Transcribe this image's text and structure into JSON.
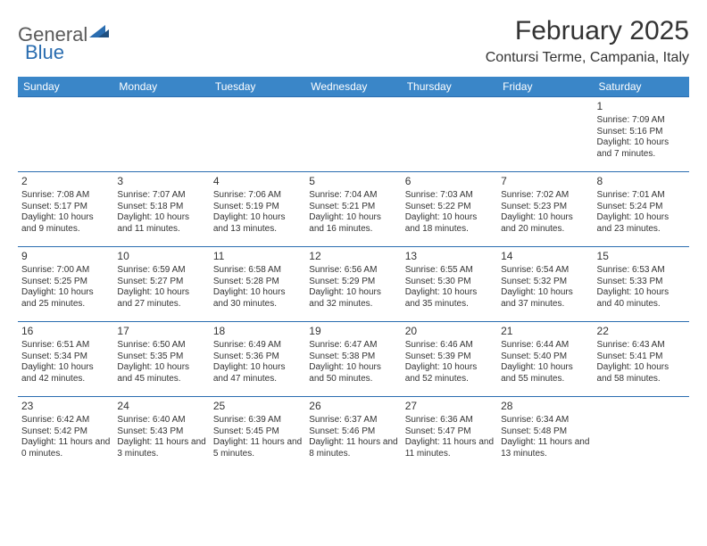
{
  "brand": {
    "part1": "General",
    "part2": "Blue"
  },
  "title": "February 2025",
  "location": "Contursi Terme, Campania, Italy",
  "colors": {
    "header_bg": "#3a86c8",
    "header_text": "#ffffff",
    "row_border": "#2a6db0",
    "text": "#333333",
    "background": "#ffffff"
  },
  "day_headers": [
    "Sunday",
    "Monday",
    "Tuesday",
    "Wednesday",
    "Thursday",
    "Friday",
    "Saturday"
  ],
  "weeks": [
    [
      null,
      null,
      null,
      null,
      null,
      null,
      {
        "n": "1",
        "sr": "Sunrise: 7:09 AM",
        "ss": "Sunset: 5:16 PM",
        "dl": "Daylight: 10 hours and 7 minutes."
      }
    ],
    [
      {
        "n": "2",
        "sr": "Sunrise: 7:08 AM",
        "ss": "Sunset: 5:17 PM",
        "dl": "Daylight: 10 hours and 9 minutes."
      },
      {
        "n": "3",
        "sr": "Sunrise: 7:07 AM",
        "ss": "Sunset: 5:18 PM",
        "dl": "Daylight: 10 hours and 11 minutes."
      },
      {
        "n": "4",
        "sr": "Sunrise: 7:06 AM",
        "ss": "Sunset: 5:19 PM",
        "dl": "Daylight: 10 hours and 13 minutes."
      },
      {
        "n": "5",
        "sr": "Sunrise: 7:04 AM",
        "ss": "Sunset: 5:21 PM",
        "dl": "Daylight: 10 hours and 16 minutes."
      },
      {
        "n": "6",
        "sr": "Sunrise: 7:03 AM",
        "ss": "Sunset: 5:22 PM",
        "dl": "Daylight: 10 hours and 18 minutes."
      },
      {
        "n": "7",
        "sr": "Sunrise: 7:02 AM",
        "ss": "Sunset: 5:23 PM",
        "dl": "Daylight: 10 hours and 20 minutes."
      },
      {
        "n": "8",
        "sr": "Sunrise: 7:01 AM",
        "ss": "Sunset: 5:24 PM",
        "dl": "Daylight: 10 hours and 23 minutes."
      }
    ],
    [
      {
        "n": "9",
        "sr": "Sunrise: 7:00 AM",
        "ss": "Sunset: 5:25 PM",
        "dl": "Daylight: 10 hours and 25 minutes."
      },
      {
        "n": "10",
        "sr": "Sunrise: 6:59 AM",
        "ss": "Sunset: 5:27 PM",
        "dl": "Daylight: 10 hours and 27 minutes."
      },
      {
        "n": "11",
        "sr": "Sunrise: 6:58 AM",
        "ss": "Sunset: 5:28 PM",
        "dl": "Daylight: 10 hours and 30 minutes."
      },
      {
        "n": "12",
        "sr": "Sunrise: 6:56 AM",
        "ss": "Sunset: 5:29 PM",
        "dl": "Daylight: 10 hours and 32 minutes."
      },
      {
        "n": "13",
        "sr": "Sunrise: 6:55 AM",
        "ss": "Sunset: 5:30 PM",
        "dl": "Daylight: 10 hours and 35 minutes."
      },
      {
        "n": "14",
        "sr": "Sunrise: 6:54 AM",
        "ss": "Sunset: 5:32 PM",
        "dl": "Daylight: 10 hours and 37 minutes."
      },
      {
        "n": "15",
        "sr": "Sunrise: 6:53 AM",
        "ss": "Sunset: 5:33 PM",
        "dl": "Daylight: 10 hours and 40 minutes."
      }
    ],
    [
      {
        "n": "16",
        "sr": "Sunrise: 6:51 AM",
        "ss": "Sunset: 5:34 PM",
        "dl": "Daylight: 10 hours and 42 minutes."
      },
      {
        "n": "17",
        "sr": "Sunrise: 6:50 AM",
        "ss": "Sunset: 5:35 PM",
        "dl": "Daylight: 10 hours and 45 minutes."
      },
      {
        "n": "18",
        "sr": "Sunrise: 6:49 AM",
        "ss": "Sunset: 5:36 PM",
        "dl": "Daylight: 10 hours and 47 minutes."
      },
      {
        "n": "19",
        "sr": "Sunrise: 6:47 AM",
        "ss": "Sunset: 5:38 PM",
        "dl": "Daylight: 10 hours and 50 minutes."
      },
      {
        "n": "20",
        "sr": "Sunrise: 6:46 AM",
        "ss": "Sunset: 5:39 PM",
        "dl": "Daylight: 10 hours and 52 minutes."
      },
      {
        "n": "21",
        "sr": "Sunrise: 6:44 AM",
        "ss": "Sunset: 5:40 PM",
        "dl": "Daylight: 10 hours and 55 minutes."
      },
      {
        "n": "22",
        "sr": "Sunrise: 6:43 AM",
        "ss": "Sunset: 5:41 PM",
        "dl": "Daylight: 10 hours and 58 minutes."
      }
    ],
    [
      {
        "n": "23",
        "sr": "Sunrise: 6:42 AM",
        "ss": "Sunset: 5:42 PM",
        "dl": "Daylight: 11 hours and 0 minutes."
      },
      {
        "n": "24",
        "sr": "Sunrise: 6:40 AM",
        "ss": "Sunset: 5:43 PM",
        "dl": "Daylight: 11 hours and 3 minutes."
      },
      {
        "n": "25",
        "sr": "Sunrise: 6:39 AM",
        "ss": "Sunset: 5:45 PM",
        "dl": "Daylight: 11 hours and 5 minutes."
      },
      {
        "n": "26",
        "sr": "Sunrise: 6:37 AM",
        "ss": "Sunset: 5:46 PM",
        "dl": "Daylight: 11 hours and 8 minutes."
      },
      {
        "n": "27",
        "sr": "Sunrise: 6:36 AM",
        "ss": "Sunset: 5:47 PM",
        "dl": "Daylight: 11 hours and 11 minutes."
      },
      {
        "n": "28",
        "sr": "Sunrise: 6:34 AM",
        "ss": "Sunset: 5:48 PM",
        "dl": "Daylight: 11 hours and 13 minutes."
      },
      null
    ]
  ]
}
